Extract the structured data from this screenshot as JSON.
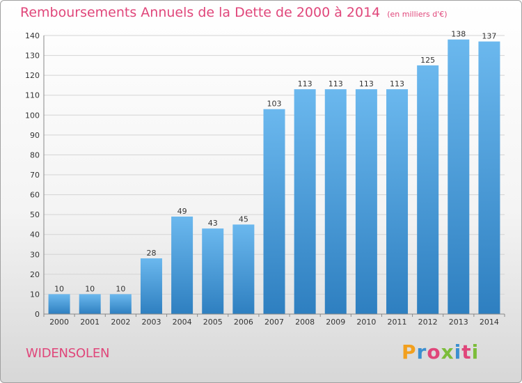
{
  "title": "Remboursements Annuels de la Dette de 2000 à 2014",
  "unit_note": "(en milliers d'€)",
  "commune": "WIDENSOLEN",
  "brand": "Proxiti",
  "colors": {
    "title": "#e0467a",
    "bar_top": "#6bb8ee",
    "bar_bottom": "#2e7fc0",
    "grid": "#d4d4d4",
    "axis_text": "#333333"
  },
  "chart_data": {
    "type": "bar",
    "title": "Remboursements Annuels de la Dette de 2000 à 2014",
    "xlabel": "",
    "ylabel": "",
    "categories": [
      "2000",
      "2001",
      "2002",
      "2003",
      "2004",
      "2005",
      "2006",
      "2007",
      "2008",
      "2009",
      "2010",
      "2011",
      "2012",
      "2013",
      "2014"
    ],
    "values": [
      10,
      10,
      10,
      28,
      49,
      43,
      45,
      103,
      113,
      113,
      113,
      113,
      125,
      138,
      137
    ],
    "ylim": [
      0,
      140
    ],
    "yticks": [
      0,
      10,
      20,
      30,
      40,
      50,
      60,
      70,
      80,
      90,
      100,
      110,
      120,
      130,
      140
    ],
    "grid": true,
    "data_labels": true
  }
}
